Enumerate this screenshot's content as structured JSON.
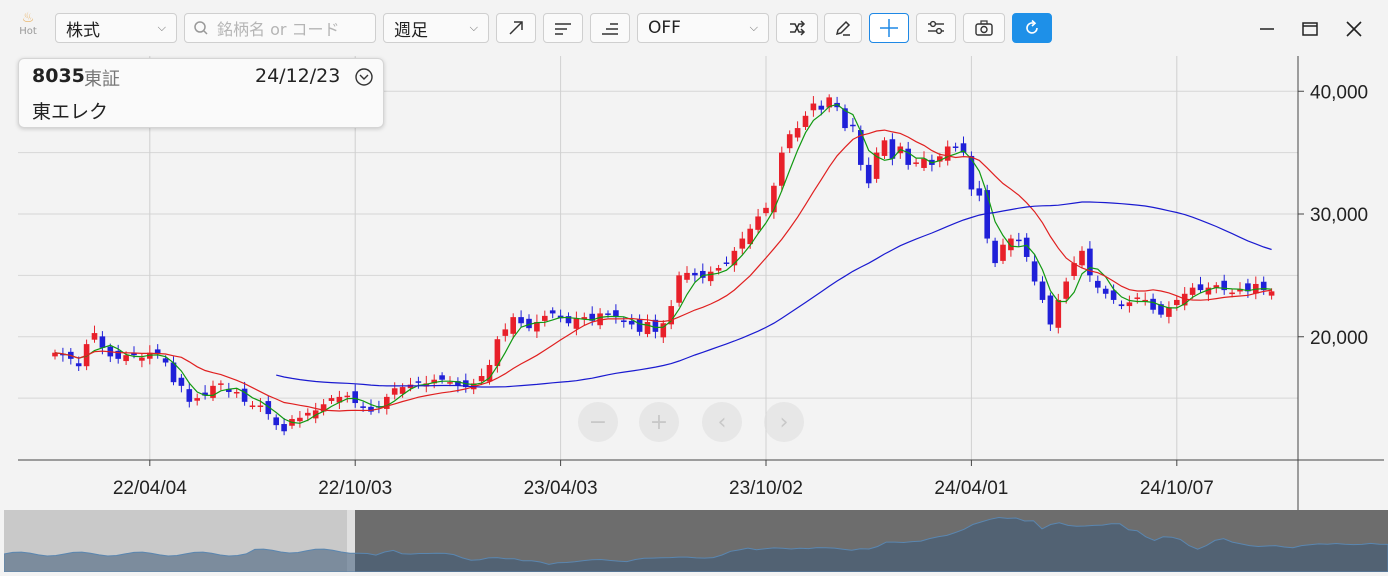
{
  "toolbar": {
    "hot_label": "Hot",
    "market_select": "株式",
    "search_placeholder": "銘柄名 or コード",
    "period_select": "週足",
    "indicator_select": "OFF"
  },
  "info": {
    "code": "8035",
    "exchange": "東証",
    "date": "24/12/23",
    "name": "東エレク"
  },
  "colors": {
    "up": "#e8202a",
    "down": "#2020d8",
    "ma_short": "#119911",
    "ma_mid": "#e02020",
    "ma_long": "#1a1ad0",
    "accent": "#1e90e8"
  },
  "chart_data": {
    "type": "candlestick",
    "x_tick_labels": [
      "22/04/04",
      "22/10/03",
      "23/04/03",
      "23/10/02",
      "24/04/01",
      "24/10/07"
    ],
    "y_tick_labels": [
      "20,000",
      "30,000",
      "40,000"
    ],
    "ylim": [
      10000,
      41000
    ],
    "start_date": "22/01/10",
    "weeks": 155,
    "close": [
      18700,
      18500,
      18200,
      17600,
      19400,
      20300,
      19100,
      18400,
      18200,
      18500,
      18500,
      18300,
      18700,
      18600,
      17900,
      16300,
      16000,
      14700,
      15000,
      15200,
      16000,
      16200,
      15500,
      15500,
      14700,
      14400,
      14400,
      13700,
      12800,
      12300,
      13300,
      13400,
      13800,
      14000,
      14500,
      15000,
      15100,
      15200,
      14600,
      14200,
      13900,
      14300,
      15100,
      15800,
      15900,
      16100,
      16300,
      16200,
      16500,
      16500,
      16300,
      16000,
      15900,
      16200,
      16800,
      17700,
      19800,
      20600,
      21600,
      21100,
      20700,
      21200,
      21700,
      21900,
      21500,
      21100,
      21500,
      21600,
      21300,
      21900,
      21800,
      21600,
      21200,
      21000,
      20400,
      21200,
      20400,
      21100,
      22500,
      25000,
      25200,
      25000,
      24800,
      25300,
      25600,
      26000,
      27000,
      28000,
      28800,
      29800,
      30500,
      32300,
      35000,
      36500,
      37000,
      38000,
      39000,
      38500,
      39500,
      38700,
      37000,
      37200,
      34000,
      32500,
      35000,
      36000,
      34500,
      35500,
      34000,
      34200,
      34500,
      34000,
      34700,
      35500,
      35400,
      35000,
      32000,
      31500,
      28000,
      26000,
      27500,
      28000,
      27800,
      26500,
      24500,
      23000,
      21000,
      23000,
      24500,
      26000,
      27000,
      25000,
      24000,
      23500,
      23000,
      22500,
      22800,
      23200,
      23000,
      22200,
      21800,
      22400,
      23000,
      23500,
      24000,
      23800,
      24000,
      24200,
      23800,
      23600,
      23900,
      23700,
      24300,
      23800,
      23700
    ]
  }
}
